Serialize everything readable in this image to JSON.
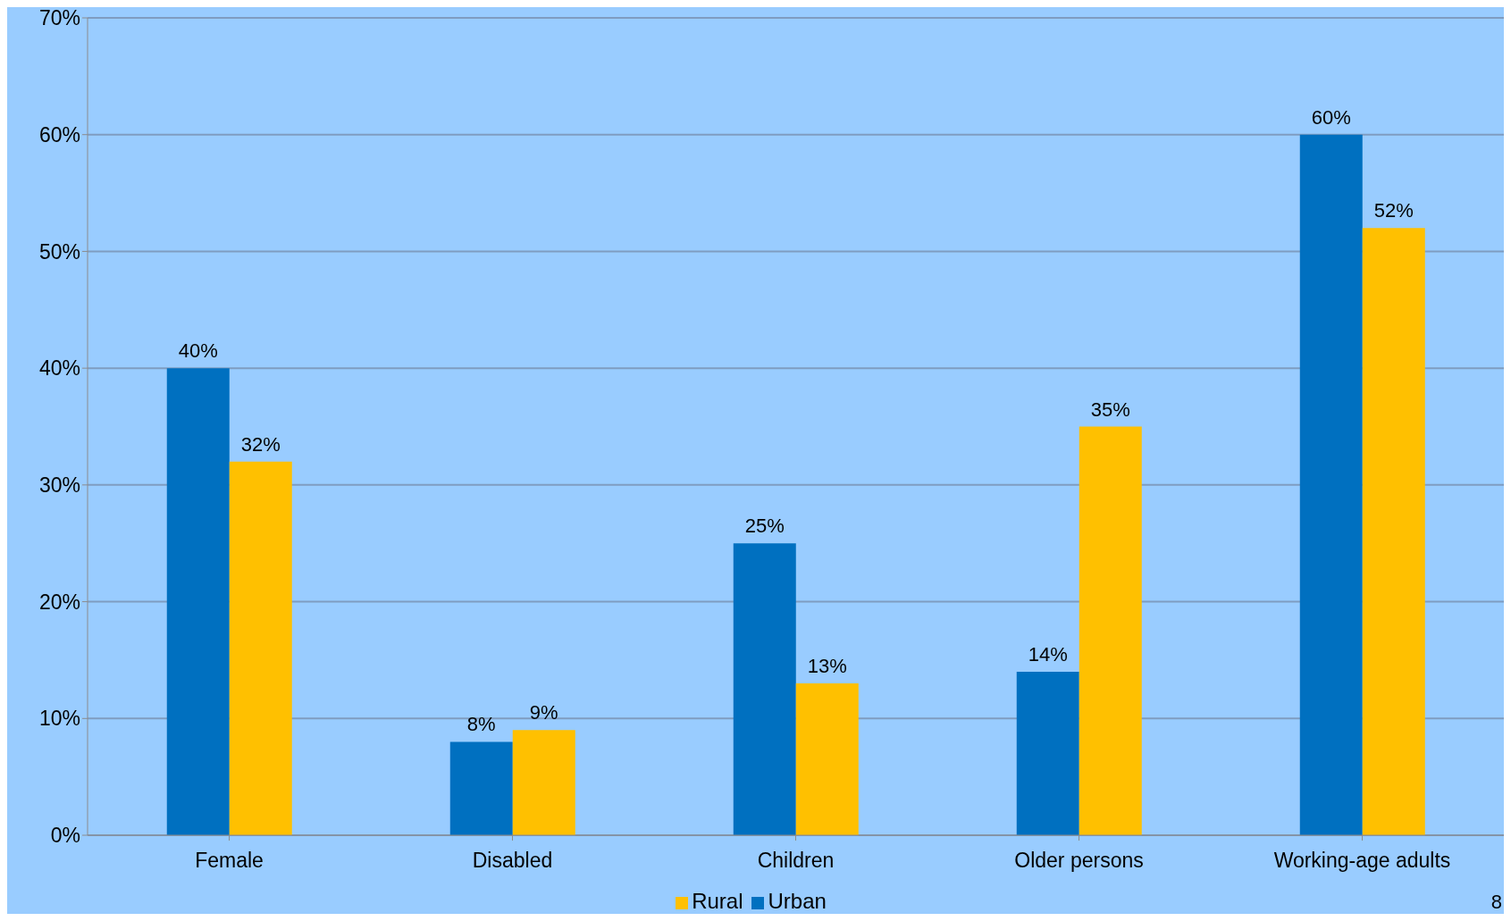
{
  "chart_data": {
    "type": "bar",
    "categories": [
      "Female",
      "Disabled",
      "Children",
      "Older persons",
      "Working-age adults"
    ],
    "series": [
      {
        "name": "Urban",
        "color": "#0070c0",
        "values": [
          40,
          8,
          25,
          14,
          60
        ],
        "value_labels": [
          "40%",
          "8%",
          "25%",
          "14%",
          "60%"
        ]
      },
      {
        "name": "Rural",
        "color": "#ffc000",
        "values": [
          32,
          9,
          13,
          35,
          52
        ],
        "value_labels": [
          "32%",
          "9%",
          "13%",
          "35%",
          "52%"
        ]
      }
    ],
    "ylim": [
      0,
      70
    ],
    "yticks": [
      {
        "value": 0,
        "label": "0%"
      },
      {
        "value": 10,
        "label": "10%"
      },
      {
        "value": 20,
        "label": "20%"
      },
      {
        "value": 30,
        "label": "30%"
      },
      {
        "value": 40,
        "label": "40%"
      },
      {
        "value": 50,
        "label": "50%"
      },
      {
        "value": 60,
        "label": "60%"
      },
      {
        "value": 70,
        "label": "70%"
      }
    ],
    "grid": "y",
    "legend": "bottom",
    "annotations": [
      "8"
    ]
  }
}
